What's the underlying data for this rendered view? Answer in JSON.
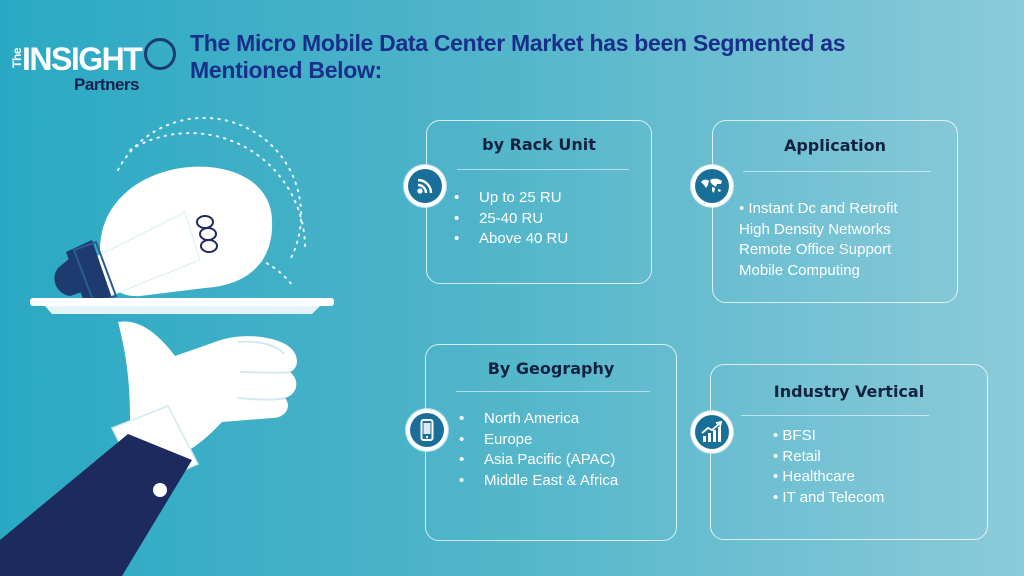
{
  "brand": {
    "the": "The",
    "insight": "INSIGHT",
    "partners": "Partners"
  },
  "title": "The Micro Mobile Data Center Market has been Segmented as Mentioned Below:",
  "colors": {
    "title": "#1a2f8a",
    "heading": "#14223f",
    "badge": "#1a6f98",
    "navy": "#1d2a5e"
  },
  "cards": [
    {
      "heading": "by Rack Unit",
      "icon": "signal-icon",
      "items": [
        "Up to 25 RU",
        "25-40 RU",
        "Above 40 RU"
      ]
    },
    {
      "heading": "Application",
      "icon": "world-map-icon",
      "items": [
        "• Instant Dc and Retrofit",
        "High Density Networks",
        "Remote Office Support",
        "Mobile Computing"
      ]
    },
    {
      "heading": "By Geography",
      "icon": "mobile-phone-icon",
      "items": [
        "North America",
        "Europe",
        "Asia Pacific (APAC)",
        "Middle East & Africa"
      ]
    },
    {
      "heading": "Industry Vertical",
      "icon": "growth-chart-icon",
      "items": [
        "• BFSI",
        "• Retail",
        "• Healthcare",
        "• IT and Telecom"
      ]
    }
  ]
}
